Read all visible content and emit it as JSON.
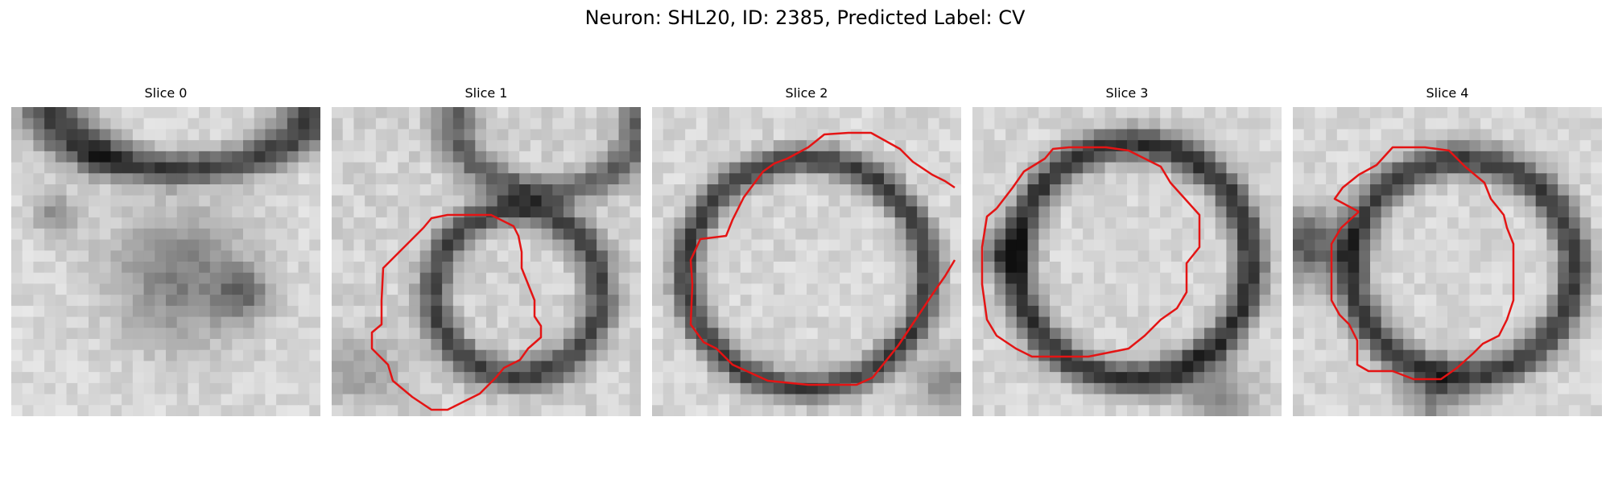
{
  "figure": {
    "title": "Neuron: SHL20, ID: 2385, Predicted Label: CV"
  },
  "panels": [
    {
      "title": "Slice 0",
      "image": "grayscale EM crop, no contour"
    },
    {
      "title": "Slice 1",
      "image": "grayscale EM crop with contour"
    },
    {
      "title": "Slice 2",
      "image": "grayscale EM crop with contour"
    },
    {
      "title": "Slice 3",
      "image": "grayscale EM crop with contour"
    },
    {
      "title": "Slice 4",
      "image": "grayscale EM crop with contour"
    }
  ],
  "colors": {
    "contour": "#e41414",
    "background": "#ffffff"
  }
}
